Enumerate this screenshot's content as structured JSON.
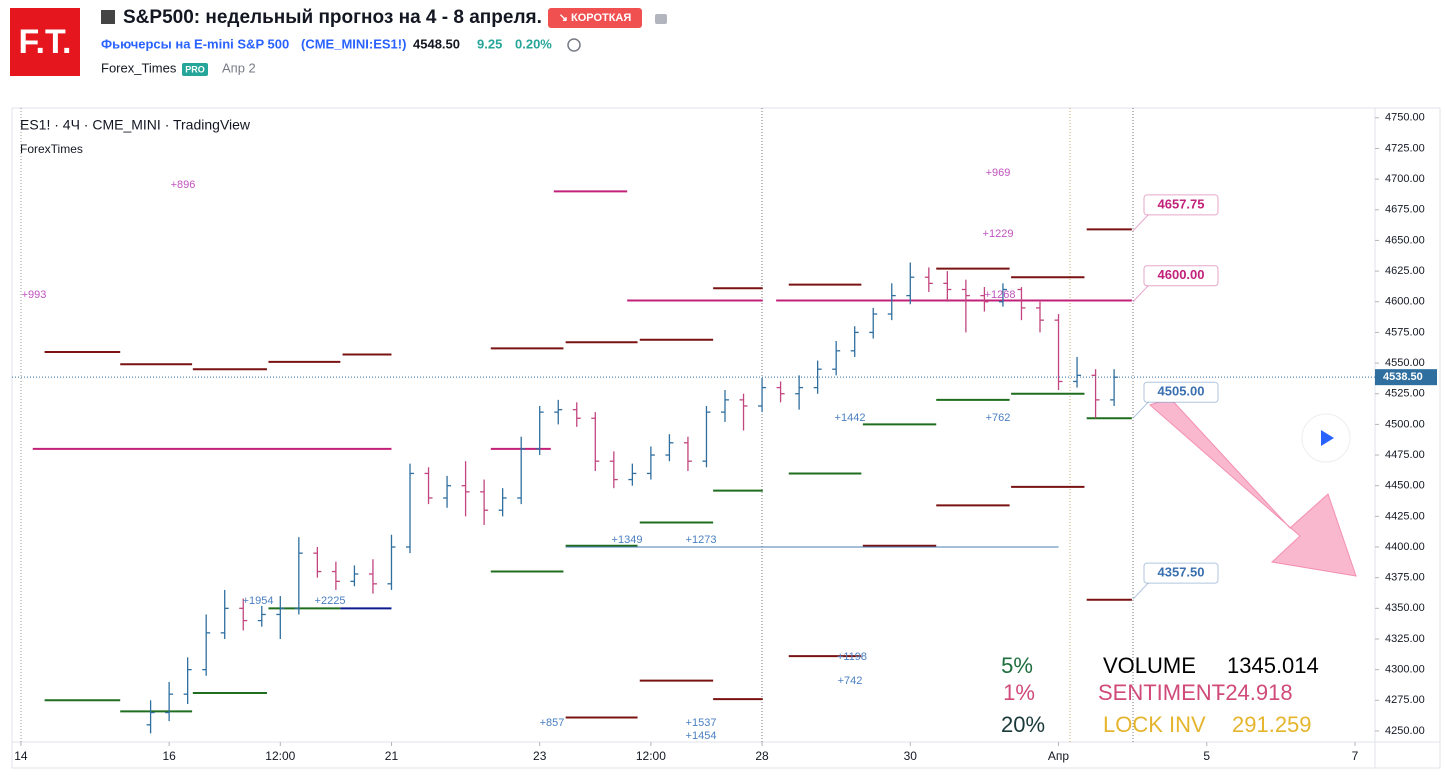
{
  "header": {
    "logo": "F.T.",
    "title": "S&P500: недельный прогноз на 4 - 8 апреля.",
    "badge": "↘ КОРОТКАЯ",
    "instrument": "Фьючерсы на E-mini S&P 500",
    "ticker": "(CME_MINI:ES1!)",
    "price": "4548.50",
    "change": "9.25",
    "change_pct": "0.20%",
    "author": "Forex_Times",
    "author_badge": "PRO",
    "date": "Апр 2"
  },
  "chart_data": {
    "type": "ohlc",
    "title": "ES1! · 4Ч · CME_MINI · TradingView",
    "subtitle": "ForexTimes",
    "up_color": "#2f6f9f",
    "down_color": "#c2457f",
    "xlim": [
      -0.12,
      18.27
    ],
    "ylim": [
      4241,
      4758
    ],
    "xticks": [
      {
        "value": 0,
        "label": "14"
      },
      {
        "value": 2,
        "label": "16"
      },
      {
        "value": 3.5,
        "label": "12:00"
      },
      {
        "value": 5,
        "label": "21"
      },
      {
        "value": 7,
        "label": "23"
      },
      {
        "value": 8.5,
        "label": "12:00"
      },
      {
        "value": 10,
        "label": "28"
      },
      {
        "value": 12,
        "label": "30"
      },
      {
        "value": 14,
        "label": "Апр"
      },
      {
        "value": 16,
        "label": "5"
      },
      {
        "value": 18,
        "label": "7"
      }
    ],
    "yticks": [
      {
        "value": 4250,
        "label": "4250.00"
      },
      {
        "value": 4275,
        "label": "4275.00"
      },
      {
        "value": 4300,
        "label": "4300.00"
      },
      {
        "value": 4325,
        "label": "4325.00"
      },
      {
        "value": 4350,
        "label": "4350.00"
      },
      {
        "value": 4375,
        "label": "4375.00"
      },
      {
        "value": 4400,
        "label": "4400.00"
      },
      {
        "value": 4425,
        "label": "4425.00"
      },
      {
        "value": 4450,
        "label": "4450.00"
      },
      {
        "value": 4475,
        "label": "4475.00"
      },
      {
        "value": 4500,
        "label": "4500.00"
      },
      {
        "value": 4525,
        "label": "4525.00"
      },
      {
        "value": 4550,
        "label": "4550.00"
      },
      {
        "value": 4575,
        "label": "4575.00"
      },
      {
        "value": 4600,
        "label": "4600.00"
      },
      {
        "value": 4625,
        "label": "4625.00"
      },
      {
        "value": 4650,
        "label": "4650.00"
      },
      {
        "value": 4675,
        "label": "4675.00"
      },
      {
        "value": 4700,
        "label": "4700.00"
      },
      {
        "value": 4725,
        "label": "4725.00"
      },
      {
        "value": 4750,
        "label": "4750.00"
      }
    ],
    "x": [
      1.75,
      2,
      2.25,
      2.5,
      2.75,
      3,
      3.25,
      3.5,
      3.75,
      4,
      4.25,
      4.5,
      4.75,
      5,
      5.25,
      5.5,
      5.75,
      6,
      6.25,
      6.5,
      6.75,
      7,
      7.25,
      7.5,
      7.75,
      8,
      8.25,
      8.5,
      8.75,
      9,
      9.25,
      9.5,
      9.75,
      10,
      10.25,
      10.5,
      10.75,
      11,
      11.25,
      11.5,
      11.75,
      12,
      12.25,
      12.5,
      12.75,
      13,
      13.25,
      13.5,
      13.75,
      14,
      14.25,
      14.5,
      14.75
    ],
    "bars": [
      [
        4255,
        4275,
        4248,
        4265
      ],
      [
        4265,
        4290,
        4258,
        4280
      ],
      [
        4280,
        4310,
        4272,
        4300
      ],
      [
        4300,
        4345,
        4295,
        4330
      ],
      [
        4330,
        4365,
        4325,
        4350
      ],
      [
        4350,
        4358,
        4332,
        4340
      ],
      [
        4340,
        4352,
        4335,
        4345
      ],
      [
        4345,
        4360,
        4325,
        4350
      ],
      [
        4350,
        4408,
        4345,
        4395
      ],
      [
        4395,
        4400,
        4375,
        4380
      ],
      [
        4380,
        4388,
        4365,
        4372
      ],
      [
        4372,
        4385,
        4368,
        4378
      ],
      [
        4378,
        4390,
        4362,
        4370
      ],
      [
        4370,
        4410,
        4365,
        4400
      ],
      [
        4400,
        4468,
        4395,
        4460
      ],
      [
        4460,
        4465,
        4435,
        4440
      ],
      [
        4440,
        4458,
        4432,
        4450
      ],
      [
        4450,
        4470,
        4425,
        4445
      ],
      [
        4445,
        4455,
        4418,
        4430
      ],
      [
        4430,
        4448,
        4425,
        4440
      ],
      [
        4440,
        4490,
        4435,
        4480
      ],
      [
        4480,
        4515,
        4475,
        4510
      ],
      [
        4510,
        4520,
        4500,
        4512
      ],
      [
        4512,
        4518,
        4498,
        4505
      ],
      [
        4505,
        4510,
        4462,
        4470
      ],
      [
        4470,
        4478,
        4448,
        4455
      ],
      [
        4455,
        4468,
        4450,
        4460
      ],
      [
        4460,
        4482,
        4455,
        4475
      ],
      [
        4475,
        4492,
        4470,
        4485
      ],
      [
        4485,
        4490,
        4462,
        4470
      ],
      [
        4470,
        4515,
        4465,
        4510
      ],
      [
        4510,
        4528,
        4502,
        4520
      ],
      [
        4520,
        4525,
        4495,
        4515
      ],
      [
        4515,
        4538,
        4510,
        4530
      ],
      [
        4530,
        4535,
        4518,
        4525
      ],
      [
        4525,
        4540,
        4512,
        4530
      ],
      [
        4530,
        4552,
        4525,
        4545
      ],
      [
        4545,
        4568,
        4540,
        4560
      ],
      [
        4560,
        4580,
        4555,
        4575
      ],
      [
        4575,
        4595,
        4570,
        4590
      ],
      [
        4590,
        4615,
        4585,
        4605
      ],
      [
        4605,
        4632,
        4598,
        4620
      ],
      [
        4620,
        4628,
        4608,
        4615
      ],
      [
        4615,
        4625,
        4600,
        4610
      ],
      [
        4610,
        4618,
        4575,
        4605
      ],
      [
        4605,
        4612,
        4592,
        4600
      ],
      [
        4600,
        4615,
        4596,
        4610
      ],
      [
        4610,
        4612,
        4585,
        4595
      ],
      [
        4595,
        4600,
        4575,
        4585
      ],
      [
        4585,
        4590,
        4528,
        4535
      ],
      [
        4535,
        4555,
        4530,
        4540
      ],
      [
        4540,
        4545,
        4505,
        4520
      ],
      [
        4520,
        4545,
        4515,
        4538.5
      ]
    ],
    "levels": [
      {
        "color": "#7a1212",
        "width": 2,
        "segments": [
          {
            "value": 4559,
            "x": [
              0.32,
              1.34
            ]
          },
          {
            "value": 4549,
            "x": [
              1.34,
              2.31
            ]
          },
          {
            "value": 4545,
            "x": [
              2.32,
              3.32
            ]
          },
          {
            "value": 4551,
            "x": [
              3.34,
              4.31
            ]
          },
          {
            "value": 4557,
            "x": [
              4.34,
              5
            ]
          },
          {
            "value": 4562,
            "x": [
              6.34,
              7.32
            ]
          },
          {
            "value": 4567,
            "x": [
              7.35,
              8.32
            ]
          },
          {
            "value": 4569,
            "x": [
              8.35,
              9.34
            ]
          },
          {
            "value": 4611,
            "x": [
              9.34,
              10.01
            ]
          },
          {
            "value": 4614,
            "x": [
              10.36,
              11.34
            ]
          },
          {
            "value": 4627,
            "x": [
              12.35,
              13.34
            ]
          },
          {
            "value": 4620,
            "x": [
              13.36,
              14.35
            ]
          },
          {
            "value": 4659,
            "x": [
              14.38,
              14.99
            ]
          },
          {
            "value": 4449,
            "x": [
              13.36,
              14.35
            ]
          },
          {
            "value": 4434,
            "x": [
              12.35,
              13.34
            ]
          },
          {
            "value": 4401,
            "x": [
              11.36,
              12.35
            ]
          },
          {
            "value": 4357,
            "x": [
              14.38,
              14.99
            ]
          },
          {
            "value": 4311,
            "x": [
              10.36,
              11.34
            ]
          },
          {
            "value": 4291,
            "x": [
              8.35,
              9.34
            ]
          },
          {
            "value": 4276,
            "x": [
              9.34,
              10.01
            ]
          },
          {
            "value": 4261,
            "x": [
              7.35,
              8.32
            ]
          }
        ]
      },
      {
        "color": "#1f6e1f",
        "width": 2,
        "segments": [
          {
            "value": 4275,
            "x": [
              0.32,
              1.34
            ]
          },
          {
            "value": 4266,
            "x": [
              1.34,
              2.31
            ]
          },
          {
            "value": 4281,
            "x": [
              2.32,
              3.32
            ]
          },
          {
            "value": 4350,
            "x": [
              3.34,
              4.31
            ]
          },
          {
            "value": 4380,
            "x": [
              6.34,
              7.32
            ]
          },
          {
            "value": 4401,
            "x": [
              7.35,
              8.32
            ]
          },
          {
            "value": 4420,
            "x": [
              8.35,
              9.34
            ]
          },
          {
            "value": 4446,
            "x": [
              9.34,
              10.01
            ]
          },
          {
            "value": 4460,
            "x": [
              10.36,
              11.34
            ]
          },
          {
            "value": 4500,
            "x": [
              11.36,
              12.35
            ]
          },
          {
            "value": 4520,
            "x": [
              12.35,
              13.34
            ]
          },
          {
            "value": 4525,
            "x": [
              13.36,
              14.35
            ]
          },
          {
            "value": 4505,
            "x": [
              14.38,
              14.99
            ]
          }
        ]
      },
      {
        "color": "#0d1b8c",
        "width": 2,
        "segments": [
          {
            "value": 4350,
            "x": [
              4.31,
              5
            ]
          }
        ]
      },
      {
        "color": "#c2217a",
        "width": 2,
        "segments": [
          {
            "value": 4480,
            "x": [
              0.16,
              5
            ]
          },
          {
            "value": 4480,
            "x": [
              6.34,
              7.15
            ]
          },
          {
            "value": 4690,
            "x": [
              7.19,
              8.18
            ]
          },
          {
            "value": 4601,
            "x": [
              8.18,
              10.01
            ]
          },
          {
            "value": 4601,
            "x": [
              10.19,
              14.99
            ]
          }
        ]
      },
      {
        "color": "#4a7bb0",
        "width": 1,
        "segments": [
          {
            "value": 4400,
            "x": [
              7.35,
              14
            ]
          }
        ]
      }
    ],
    "callouts": [
      {
        "value": 4657.75,
        "label": "4657.75",
        "color": "#c2217a"
      },
      {
        "value": 4600,
        "label": "4600.00",
        "color": "#c2217a"
      },
      {
        "value": 4505,
        "label": "4505.00",
        "color": "#3a6fb0"
      },
      {
        "value": 4357.5,
        "label": "4357.50",
        "color": "#3a6fb0"
      }
    ],
    "last_price": {
      "value": 4538.5,
      "label": "4538.50"
    },
    "annotations": [
      "+896",
      "+993",
      "+969",
      "+1229",
      "+1268",
      "+1442",
      "+762",
      "+1349",
      "+1273",
      "+1954",
      "+2225",
      "+1198",
      "+742",
      "+857",
      "+1537",
      "+1454"
    ],
    "stats": {
      "pct1": "5%",
      "pct2": "1%",
      "pct3": "20%",
      "volume_label": "VOLUME",
      "volume": "1345.014",
      "sentiment_label": "SENTIMENT",
      "sentiment": "-24.918",
      "lock_label": "LOCK INV",
      "lock": "291.259"
    }
  }
}
